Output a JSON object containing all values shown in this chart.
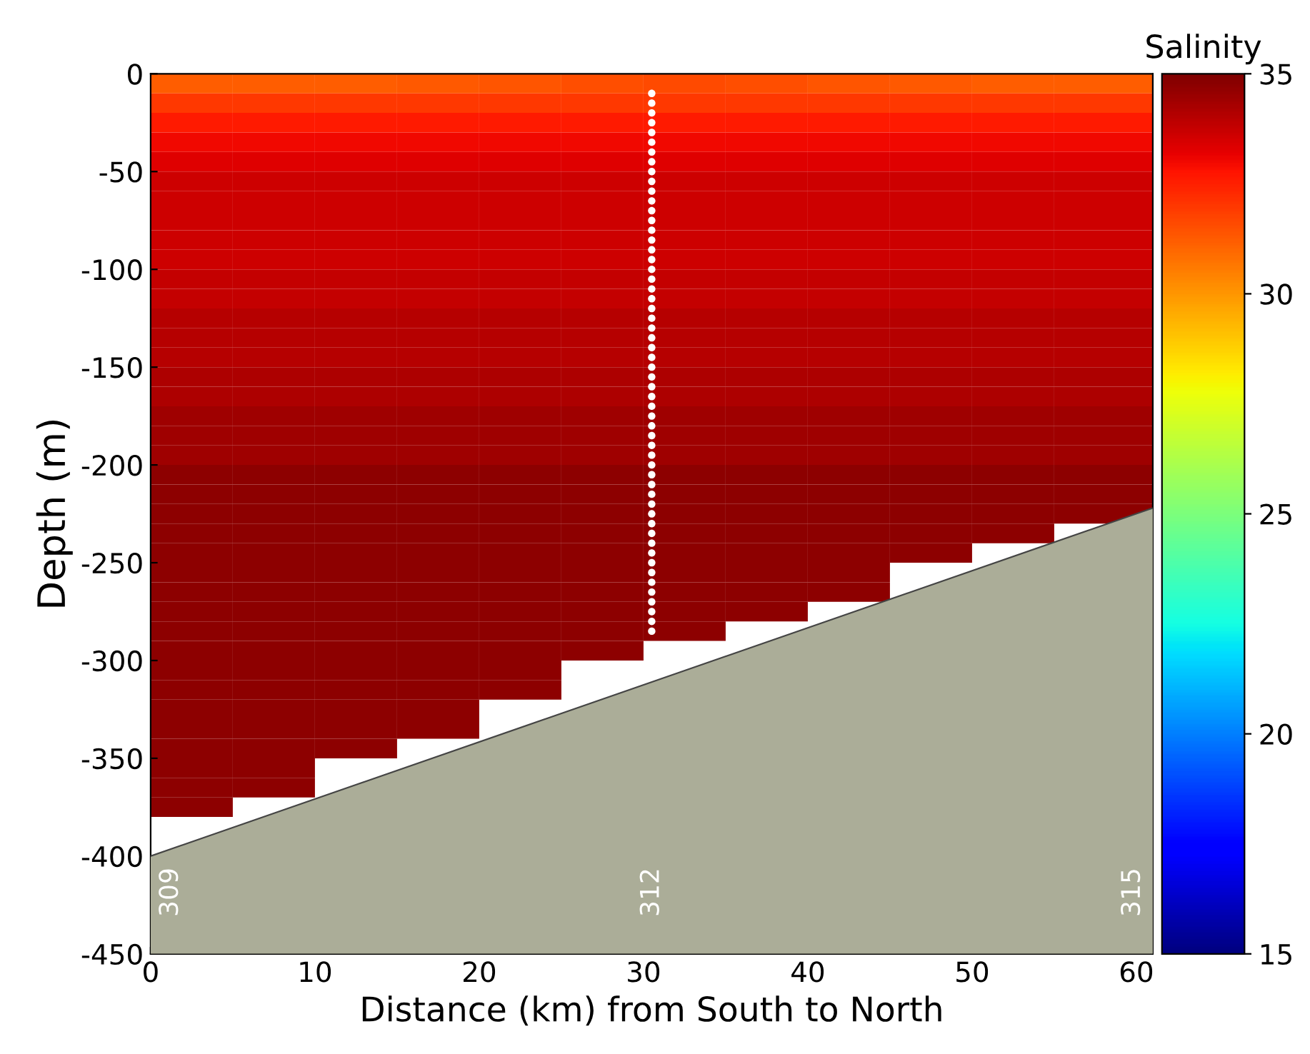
{
  "chart_data": {
    "type": "heatmap",
    "xlabel": "Distance (km) from South to North",
    "ylabel": "Depth (m)",
    "clabel": "Salinity",
    "x": [
      2.5,
      7.5,
      12.5,
      17.5,
      22.5,
      27.5,
      32.5,
      37.5,
      42.5,
      47.5,
      52.5,
      57.5
    ],
    "y": [
      -5,
      -15,
      -25,
      -35,
      -45,
      -55,
      -65,
      -75,
      -85,
      -95,
      -105,
      -115,
      -125,
      -135,
      -145,
      -155,
      -165,
      -175,
      -185,
      -195,
      -205,
      -215,
      -225,
      -235,
      -245,
      -255,
      -265,
      -275,
      -285,
      -295,
      -305,
      -315,
      -325,
      -335,
      -345,
      -355,
      -365,
      -375
    ],
    "cells": [
      [
        31.2,
        31.2,
        31.2,
        31.3,
        31.4,
        31.5,
        31.6,
        31.5,
        31.4,
        31.3,
        31.2,
        31.2
      ],
      [
        32.0,
        32.0,
        32.0,
        32.0,
        32.0,
        32.0,
        32.0,
        32.0,
        32.0,
        32.0,
        32.0,
        32.0
      ],
      [
        32.6,
        32.6,
        32.6,
        32.6,
        32.6,
        32.6,
        32.6,
        32.6,
        32.6,
        32.6,
        32.6,
        32.6
      ],
      [
        33.0,
        33.0,
        33.0,
        33.0,
        33.0,
        33.0,
        33.0,
        33.0,
        33.0,
        33.0,
        33.0,
        33.0
      ],
      [
        33.3,
        33.3,
        33.3,
        33.3,
        33.3,
        33.3,
        33.3,
        33.3,
        33.3,
        33.3,
        33.3,
        33.3
      ],
      [
        33.6,
        33.6,
        33.6,
        33.6,
        33.6,
        33.6,
        33.6,
        33.6,
        33.6,
        33.6,
        33.6,
        33.6
      ],
      [
        33.6,
        33.6,
        33.6,
        33.6,
        33.6,
        33.6,
        33.6,
        33.6,
        33.6,
        33.6,
        33.6,
        33.6
      ],
      [
        33.6,
        33.6,
        33.6,
        33.6,
        33.6,
        33.6,
        33.6,
        33.6,
        33.6,
        33.6,
        33.6,
        33.6
      ],
      [
        33.6,
        33.6,
        33.6,
        33.6,
        33.6,
        33.6,
        33.6,
        33.6,
        33.6,
        33.6,
        33.6,
        33.6
      ],
      [
        33.6,
        33.6,
        33.6,
        33.6,
        33.6,
        33.6,
        33.6,
        33.6,
        33.6,
        33.6,
        33.6,
        33.6
      ],
      [
        33.8,
        33.8,
        33.8,
        33.8,
        33.8,
        33.8,
        33.8,
        33.8,
        33.8,
        33.8,
        33.8,
        33.8
      ],
      [
        33.8,
        33.8,
        33.8,
        33.8,
        33.8,
        33.8,
        33.8,
        33.8,
        33.8,
        33.8,
        33.8,
        33.8
      ],
      [
        34.0,
        34.0,
        34.0,
        34.0,
        34.0,
        34.0,
        34.0,
        34.0,
        34.0,
        34.0,
        34.0,
        34.0
      ],
      [
        34.0,
        34.0,
        34.0,
        34.0,
        34.0,
        34.0,
        34.0,
        34.0,
        34.0,
        34.0,
        34.0,
        34.0
      ],
      [
        34.0,
        34.0,
        34.0,
        34.0,
        34.0,
        34.0,
        34.0,
        34.0,
        34.0,
        34.0,
        34.0,
        34.0
      ],
      [
        34.2,
        34.2,
        34.2,
        34.2,
        34.2,
        34.2,
        34.2,
        34.2,
        34.2,
        34.2,
        34.2,
        34.2
      ],
      [
        34.2,
        34.2,
        34.2,
        34.2,
        34.2,
        34.2,
        34.2,
        34.2,
        34.2,
        34.2,
        34.2,
        34.2
      ],
      [
        34.4,
        34.4,
        34.4,
        34.4,
        34.4,
        34.4,
        34.4,
        34.4,
        34.4,
        34.4,
        34.4,
        34.4
      ],
      [
        34.4,
        34.4,
        34.4,
        34.4,
        34.4,
        34.4,
        34.4,
        34.4,
        34.4,
        34.4,
        34.4,
        34.4
      ],
      [
        34.4,
        34.4,
        34.4,
        34.4,
        34.4,
        34.4,
        34.4,
        34.4,
        34.4,
        34.4,
        34.4,
        34.4
      ],
      [
        34.7,
        34.7,
        34.7,
        34.7,
        34.7,
        34.7,
        34.7,
        34.7,
        34.7,
        34.7,
        34.7,
        34.7
      ],
      [
        34.7,
        34.7,
        34.7,
        34.7,
        34.7,
        34.7,
        34.7,
        34.7,
        34.7,
        34.7,
        34.7,
        34.7
      ],
      [
        34.7,
        34.7,
        34.7,
        34.7,
        34.7,
        34.7,
        34.7,
        34.7,
        34.7,
        34.7,
        34.7,
        34.7
      ],
      [
        34.7,
        34.7,
        34.7,
        34.7,
        34.7,
        34.7,
        34.7,
        34.7,
        34.7,
        34.7,
        34.7,
        null
      ],
      [
        34.7,
        34.7,
        34.7,
        34.7,
        34.7,
        34.7,
        34.7,
        34.7,
        34.7,
        34.7,
        null,
        null
      ],
      [
        34.7,
        34.7,
        34.7,
        34.7,
        34.7,
        34.7,
        34.7,
        34.7,
        34.7,
        null,
        null,
        null
      ],
      [
        34.7,
        34.7,
        34.7,
        34.7,
        34.7,
        34.7,
        34.7,
        34.7,
        34.7,
        null,
        null,
        null
      ],
      [
        34.7,
        34.7,
        34.7,
        34.7,
        34.7,
        34.7,
        34.7,
        34.7,
        null,
        null,
        null,
        null
      ],
      [
        34.7,
        34.7,
        34.7,
        34.7,
        34.7,
        34.7,
        34.7,
        null,
        null,
        null,
        null,
        null
      ],
      [
        34.7,
        34.7,
        34.7,
        34.7,
        34.7,
        34.7,
        null,
        null,
        null,
        null,
        null,
        null
      ],
      [
        34.7,
        34.7,
        34.7,
        34.7,
        34.7,
        null,
        null,
        null,
        null,
        null,
        null,
        null
      ],
      [
        34.7,
        34.7,
        34.7,
        34.7,
        34.7,
        null,
        null,
        null,
        null,
        null,
        null,
        null
      ],
      [
        34.7,
        34.7,
        34.7,
        34.7,
        null,
        null,
        null,
        null,
        null,
        null,
        null,
        null
      ],
      [
        34.7,
        34.7,
        34.7,
        34.7,
        null,
        null,
        null,
        null,
        null,
        null,
        null,
        null
      ],
      [
        34.7,
        34.7,
        34.7,
        null,
        null,
        null,
        null,
        null,
        null,
        null,
        null,
        null
      ],
      [
        34.7,
        34.7,
        null,
        null,
        null,
        null,
        null,
        null,
        null,
        null,
        null,
        null
      ],
      [
        34.7,
        34.7,
        null,
        null,
        null,
        null,
        null,
        null,
        null,
        null,
        null,
        null
      ],
      [
        34.7,
        null,
        null,
        null,
        null,
        null,
        null,
        null,
        null,
        null,
        null,
        null
      ]
    ],
    "clim": [
      15,
      35
    ],
    "cticks": [
      15,
      20,
      25,
      30,
      35
    ],
    "xlim": [
      0,
      61
    ],
    "ylim": [
      -450,
      0
    ],
    "xticks": [
      0,
      10,
      20,
      30,
      40,
      50,
      60
    ],
    "yticks": [
      -450,
      -400,
      -350,
      -300,
      -250,
      -200,
      -150,
      -100,
      -50,
      0
    ],
    "series": [
      {
        "type": "line",
        "color": "#444444",
        "x": [
          0,
          61
        ],
        "values": [
          -400,
          -222
        ]
      },
      {
        "type": "scatter",
        "color": "#ffffff",
        "marker": "circle",
        "x": [
          30.5,
          30.5,
          30.5,
          30.5,
          30.5,
          30.5,
          30.5,
          30.5,
          30.5,
          30.5,
          30.5,
          30.5,
          30.5,
          30.5,
          30.5,
          30.5,
          30.5,
          30.5,
          30.5,
          30.5,
          30.5,
          30.5,
          30.5,
          30.5,
          30.5,
          30.5,
          30.5,
          30.5,
          30.5,
          30.5,
          30.5,
          30.5,
          30.5,
          30.5,
          30.5,
          30.5,
          30.5,
          30.5,
          30.5,
          30.5,
          30.5,
          30.5,
          30.5,
          30.5,
          30.5,
          30.5,
          30.5,
          30.5,
          30.5,
          30.5,
          30.5,
          30.5,
          30.5,
          30.5,
          30.5,
          30.5
        ],
        "values": [
          -10,
          -15,
          -20,
          -25,
          -30,
          -35,
          -40,
          -45,
          -50,
          -55,
          -60,
          -65,
          -70,
          -75,
          -80,
          -85,
          -90,
          -95,
          -100,
          -105,
          -110,
          -115,
          -120,
          -125,
          -130,
          -135,
          -140,
          -145,
          -150,
          -155,
          -160,
          -165,
          -170,
          -175,
          -180,
          -185,
          -190,
          -195,
          -200,
          -205,
          -210,
          -215,
          -220,
          -225,
          -230,
          -235,
          -240,
          -245,
          -250,
          -255,
          -260,
          -265,
          -270,
          -275,
          -280,
          -285
        ]
      }
    ],
    "grid": false,
    "annotations": [
      "309",
      "312",
      "315"
    ]
  }
}
